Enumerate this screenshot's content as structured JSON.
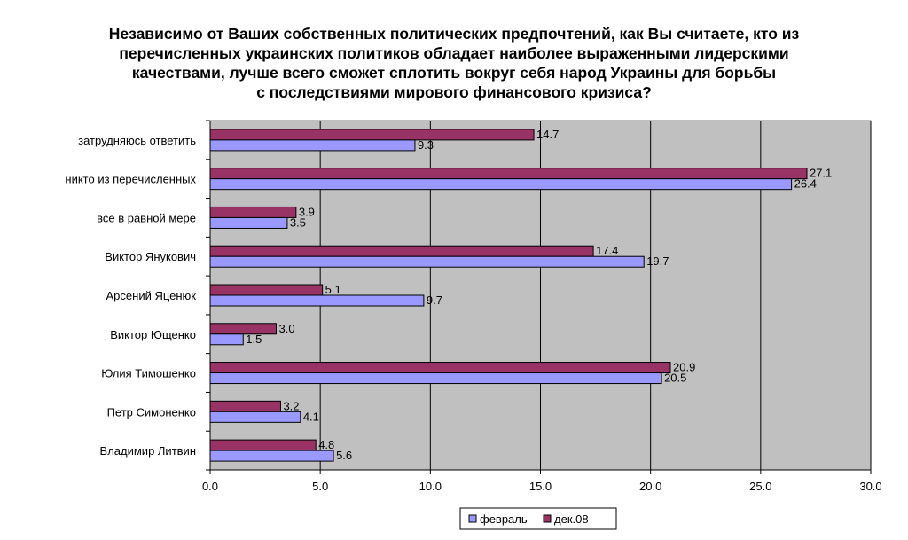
{
  "title_lines": [
    "Независимо от Ваших собственных политических предпочтений, как Вы считаете, кто из",
    "перечисленных украинских политиков обладает наиболее выраженными лидерскими",
    "качествами, лучше всего сможет сплотить вокруг себя народ Украины для борьбы",
    "с последствиями мирового финансового кризиса?"
  ],
  "colors": {
    "plot_bg": "#c0c0c0",
    "february": "#9999ff",
    "dec08": "#993366",
    "grid": "#000000"
  },
  "chart_data": {
    "type": "bar",
    "orientation": "horizontal",
    "title": "Независимо от Ваших собственных политических предпочтений, как Вы считаете, кто из перечисленных украинских политиков обладает наиболее выраженными лидерскими качествами, лучше всего сможет сплотить вокруг себя народ Украины для борьбы с последствиями мирового финансового кризиса?",
    "categories": [
      "затрудняюсь ответить",
      "никто из перечисленных",
      "все в равной мере",
      "Виктор Янукович",
      "Арсений Яценюк",
      "Виктор Ющенко",
      "Юлия Тимошенко",
      "Петр Симоненко",
      "Владимир Литвин"
    ],
    "series": [
      {
        "name": "дек.08",
        "values": [
          14.7,
          27.1,
          3.9,
          17.4,
          5.1,
          3.0,
          20.9,
          3.2,
          4.8
        ]
      },
      {
        "name": "февраль",
        "values": [
          9.3,
          26.4,
          3.5,
          19.7,
          9.7,
          1.5,
          20.5,
          4.1,
          5.6
        ]
      }
    ],
    "xlim": [
      0,
      30
    ],
    "ticks": [
      "0.0",
      "5.0",
      "10.0",
      "15.0",
      "20.0",
      "25.0",
      "30.0"
    ],
    "grid": true,
    "legend": {
      "position": "bottom",
      "entries": [
        "февраль",
        "дек.08"
      ]
    }
  }
}
